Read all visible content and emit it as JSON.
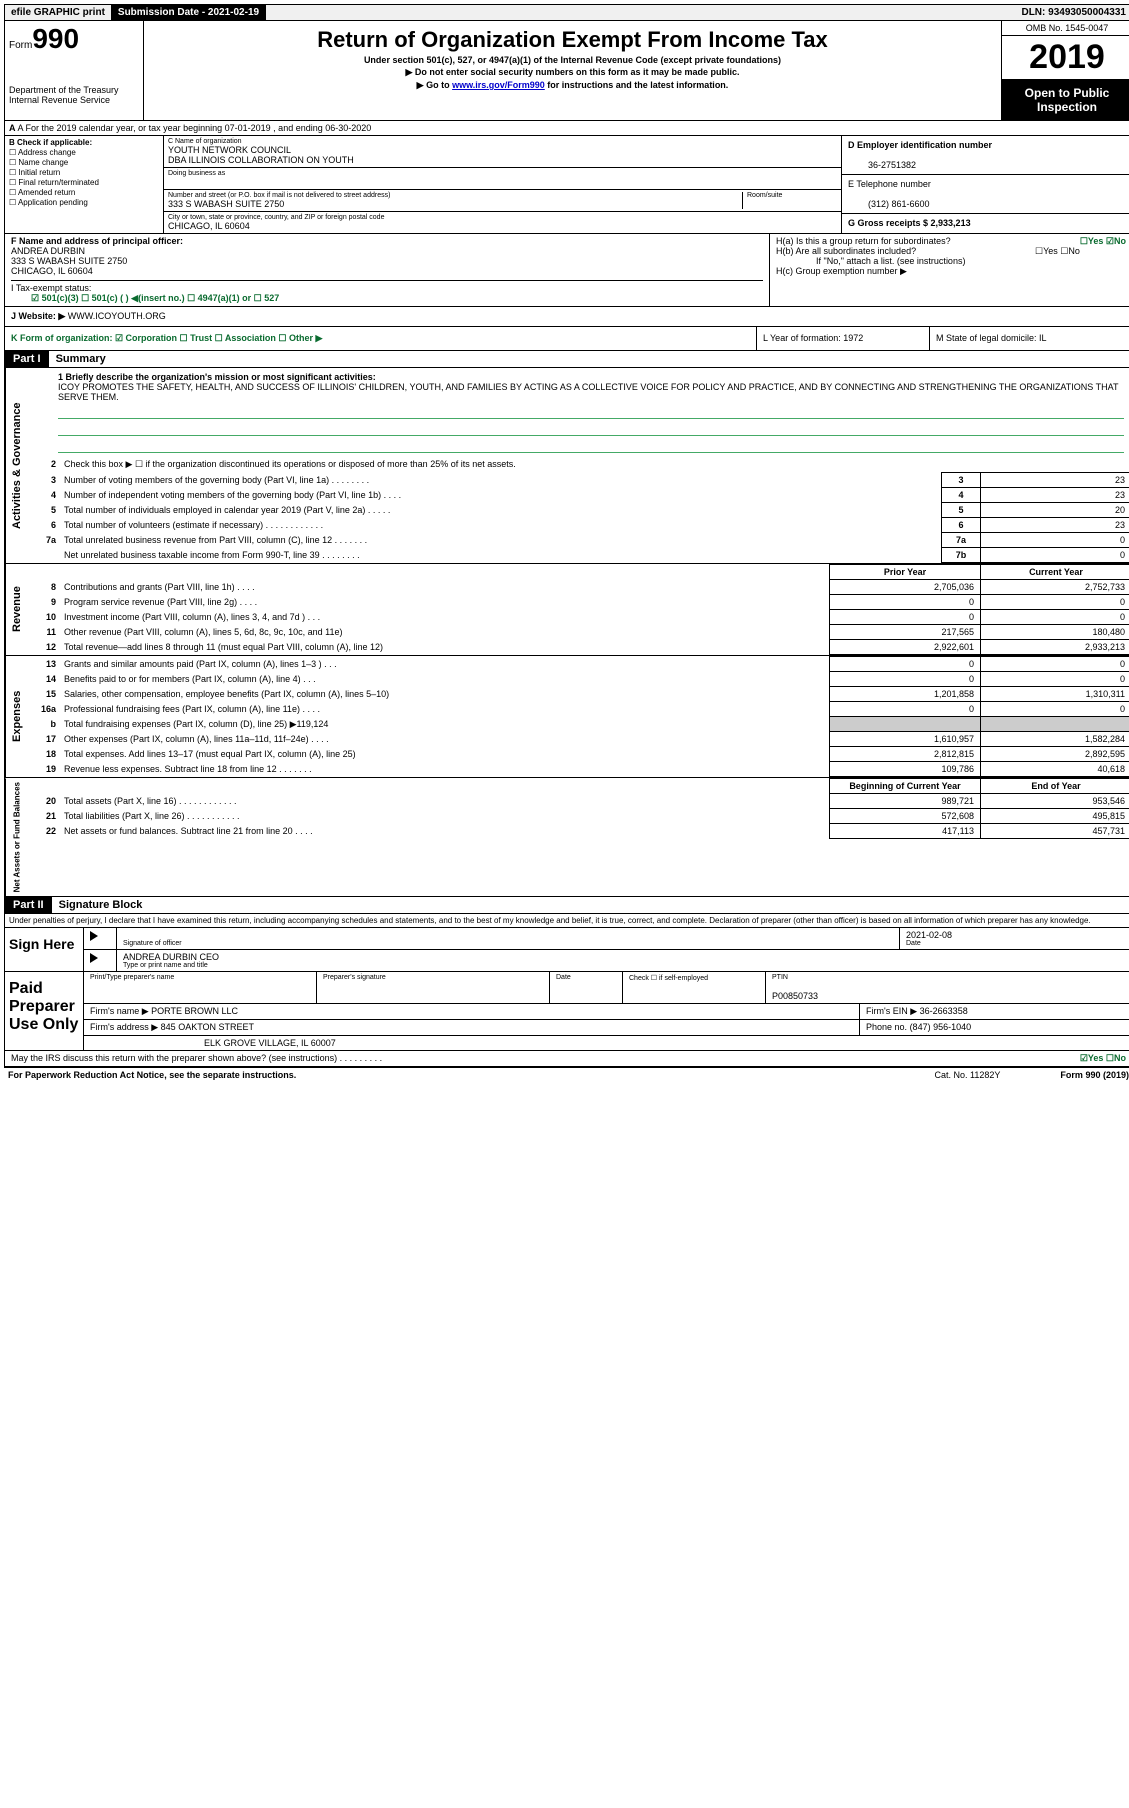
{
  "topbar": {
    "efile": "efile GRAPHIC print",
    "sub_label": "Submission Date - 2021-02-19",
    "dln": "DLN: 93493050004331"
  },
  "header": {
    "form_small": "Form",
    "form_big": "990",
    "dept": "Department of the Treasury\nInternal Revenue Service",
    "title": "Return of Organization Exempt From Income Tax",
    "subtitle": "Under section 501(c), 527, or 4947(a)(1) of the Internal Revenue Code (except private foundations)",
    "note1": "▶ Do not enter social security numbers on this form as it may be made public.",
    "note2_pre": "▶ Go to ",
    "note2_link": "www.irs.gov/Form990",
    "note2_post": " for instructions and the latest information.",
    "omb": "OMB No. 1545-0047",
    "year": "2019",
    "open": "Open to Public Inspection"
  },
  "rowA": "A For the 2019 calendar year, or tax year beginning 07-01-2019   , and ending 06-30-2020",
  "colB": {
    "hdr": "B Check if applicable:",
    "opts": [
      "Address change",
      "Name change",
      "Initial return",
      "Final return/terminated",
      "Amended return",
      "Application pending"
    ]
  },
  "colC": {
    "name_lbl": "C Name of organization",
    "name": "YOUTH NETWORK COUNCIL",
    "dba": "DBA ILLINOIS COLLABORATION ON YOUTH",
    "dba_lbl": "Doing business as",
    "addr_lbl": "Number and street (or P.O. box if mail is not delivered to street address)",
    "room_lbl": "Room/suite",
    "addr": "333 S WABASH SUITE 2750",
    "city_lbl": "City or town, state or province, country, and ZIP or foreign postal code",
    "city": "CHICAGO, IL  60604"
  },
  "colD": {
    "ein_lbl": "D Employer identification number",
    "ein": "36-2751382",
    "phone_lbl": "E Telephone number",
    "phone": "(312) 861-6600",
    "gross_lbl": "G Gross receipts $ 2,933,213"
  },
  "rowF": {
    "lbl": "F  Name and address of principal officer:",
    "name": "ANDREA DURBIN",
    "addr": "333 S WABASH SUITE 2750\nCHICAGO, IL  60604"
  },
  "rowH": {
    "ha": "H(a)  Is this a group return for subordinates?",
    "ha_ans": "☐Yes  ☑No",
    "hb": "H(b)  Are all subordinates included?",
    "hb_ans": "☐Yes  ☐No",
    "hb_note": "If \"No,\" attach a list. (see instructions)",
    "hc": "H(c)  Group exemption number ▶"
  },
  "tax": {
    "lbl": "I   Tax-exempt status:",
    "opts": "☑ 501(c)(3)   ☐ 501(c) (  ) ◀(insert no.)   ☐ 4947(a)(1) or   ☐ 527"
  },
  "rowJ": {
    "lbl": "J   Website: ▶",
    "val": "WWW.ICOYOUTH.ORG"
  },
  "rowK": {
    "k": "K Form of organization:  ☑ Corporation  ☐ Trust  ☐ Association  ☐ Other ▶",
    "l": "L Year of formation: 1972",
    "m": "M State of legal domicile: IL"
  },
  "part1": {
    "hdr": "Part I",
    "title": "Summary"
  },
  "mission": {
    "q": "1  Briefly describe the organization's mission or most significant activities:",
    "text": "ICOY PROMOTES THE SAFETY, HEALTH, AND SUCCESS OF ILLINOIS' CHILDREN, YOUTH, AND FAMILIES BY ACTING AS A COLLECTIVE VOICE FOR POLICY AND PRACTICE, AND BY CONNECTING AND STRENGTHENING THE ORGANIZATIONS THAT SERVE THEM."
  },
  "sideLabels": {
    "gov": "Activities & Governance",
    "rev": "Revenue",
    "exp": "Expenses",
    "net": "Net Assets or Fund Balances"
  },
  "govLines": [
    {
      "n": "2",
      "t": "Check this box ▶ ☐  if the organization discontinued its operations or disposed of more than 25% of its net assets."
    },
    {
      "n": "3",
      "t": "Number of voting members of the governing body (Part VI, line 1a)  .   .   .   .   .   .   .   .",
      "b": "3",
      "v": "23"
    },
    {
      "n": "4",
      "t": "Number of independent voting members of the governing body (Part VI, line 1b)  .   .   .   .",
      "b": "4",
      "v": "23"
    },
    {
      "n": "5",
      "t": "Total number of individuals employed in calendar year 2019 (Part V, line 2a)  .   .   .   .   .",
      "b": "5",
      "v": "20"
    },
    {
      "n": "6",
      "t": "Total number of volunteers (estimate if necessary)   .   .   .   .   .   .   .   .   .   .   .   .",
      "b": "6",
      "v": "23"
    },
    {
      "n": "7a",
      "t": "Total unrelated business revenue from Part VIII, column (C), line 12  .   .   .   .   .   .   .",
      "b": "7a",
      "v": "0"
    },
    {
      "n": "",
      "t": "Net unrelated business taxable income from Form 990-T, line 39   .   .   .   .   .   .   .   .",
      "b": "7b",
      "v": "0"
    }
  ],
  "colHdrs": {
    "prior": "Prior Year",
    "current": "Current Year"
  },
  "revLines": [
    {
      "n": "8",
      "t": "Contributions and grants (Part VIII, line 1h)   .   .   .   .",
      "p": "2,705,036",
      "c": "2,752,733"
    },
    {
      "n": "9",
      "t": "Program service revenue (Part VIII, line 2g)   .   .   .   .",
      "p": "0",
      "c": "0"
    },
    {
      "n": "10",
      "t": "Investment income (Part VIII, column (A), lines 3, 4, and 7d )   .   .   .",
      "p": "0",
      "c": "0"
    },
    {
      "n": "11",
      "t": "Other revenue (Part VIII, column (A), lines 5, 6d, 8c, 9c, 10c, and 11e)",
      "p": "217,565",
      "c": "180,480"
    },
    {
      "n": "12",
      "t": "Total revenue—add lines 8 through 11 (must equal Part VIII, column (A), line 12)",
      "p": "2,922,601",
      "c": "2,933,213"
    }
  ],
  "expLines": [
    {
      "n": "13",
      "t": "Grants and similar amounts paid (Part IX, column (A), lines 1–3 )  .   .   .",
      "p": "0",
      "c": "0"
    },
    {
      "n": "14",
      "t": "Benefits paid to or for members (Part IX, column (A), line 4)  .   .   .",
      "p": "0",
      "c": "0"
    },
    {
      "n": "15",
      "t": "Salaries, other compensation, employee benefits (Part IX, column (A), lines 5–10)",
      "p": "1,201,858",
      "c": "1,310,311"
    },
    {
      "n": "16a",
      "t": "Professional fundraising fees (Part IX, column (A), line 11e)  .   .   .   .",
      "p": "0",
      "c": "0"
    },
    {
      "n": "b",
      "t": "Total fundraising expenses (Part IX, column (D), line 25) ▶119,124",
      "shade": true
    },
    {
      "n": "17",
      "t": "Other expenses (Part IX, column (A), lines 11a–11d, 11f–24e)  .   .   .   .",
      "p": "1,610,957",
      "c": "1,582,284"
    },
    {
      "n": "18",
      "t": "Total expenses. Add lines 13–17 (must equal Part IX, column (A), line 25)",
      "p": "2,812,815",
      "c": "2,892,595"
    },
    {
      "n": "19",
      "t": "Revenue less expenses. Subtract line 18 from line 12 .   .   .   .   .   .   .",
      "p": "109,786",
      "c": "40,618"
    }
  ],
  "netHdrs": {
    "begin": "Beginning of Current Year",
    "end": "End of Year"
  },
  "netLines": [
    {
      "n": "20",
      "t": "Total assets (Part X, line 16)  .   .   .   .   .   .   .   .   .   .   .   .",
      "p": "989,721",
      "c": "953,546"
    },
    {
      "n": "21",
      "t": "Total liabilities (Part X, line 26)  .   .   .   .   .   .   .   .   .   .   .",
      "p": "572,608",
      "c": "495,815"
    },
    {
      "n": "22",
      "t": "Net assets or fund balances. Subtract line 21 from line 20  .   .   .   .",
      "p": "417,113",
      "c": "457,731"
    }
  ],
  "part2": {
    "hdr": "Part II",
    "title": "Signature Block"
  },
  "sig": {
    "intro": "Under penalties of perjury, I declare that I have examined this return, including accompanying schedules and statements, and to the best of my knowledge and belief, it is true, correct, and complete. Declaration of preparer (other than officer) is based on all information of which preparer has any knowledge.",
    "sign_here": "Sign Here",
    "sig_officer_lbl": "Signature of officer",
    "date": "2021-02-08",
    "date_lbl": "Date",
    "name_title": "ANDREA DURBIN  CEO",
    "name_title_lbl": "Type or print name and title",
    "paid": "Paid Preparer Use Only",
    "prep_name_lbl": "Print/Type preparer's name",
    "prep_sig_lbl": "Preparer's signature",
    "prep_date_lbl": "Date",
    "check_lbl": "Check ☐ if self-employed",
    "ptin_lbl": "PTIN",
    "ptin": "P00850733",
    "firm_name_lbl": "Firm's name   ▶",
    "firm_name": "PORTE BROWN LLC",
    "firm_ein_lbl": "Firm's EIN ▶",
    "firm_ein": "36-2663358",
    "firm_addr_lbl": "Firm's address ▶",
    "firm_addr": "845 OAKTON STREET",
    "firm_city": "ELK GROVE VILLAGE, IL  60007",
    "firm_phone_lbl": "Phone no.",
    "firm_phone": "(847) 956-1040",
    "discuss": "May the IRS discuss this return with the preparer shown above? (see instructions)   .   .   .   .   .   .   .   .   .",
    "discuss_ans": "☑Yes  ☐No"
  },
  "footer": {
    "left": "For Paperwork Reduction Act Notice, see the separate instructions.",
    "mid": "Cat. No. 11282Y",
    "right": "Form 990 (2019)"
  }
}
